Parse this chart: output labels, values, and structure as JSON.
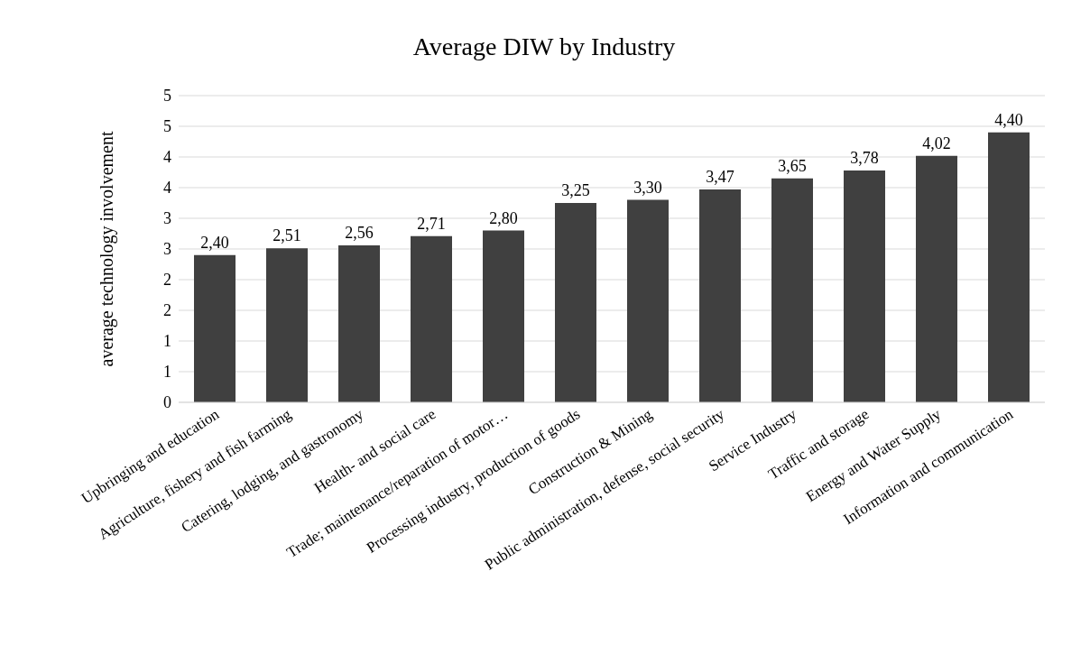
{
  "chart_data": {
    "type": "bar",
    "title": "Average DIW by Industry",
    "ylabel": "average technology involvement",
    "categories": [
      "Upbringing and education",
      "Agriculture, fishery and fish farming",
      "Catering, lodging, and gastronomy",
      "Health- and social care",
      "Trade; maintenance/reparation of motor…",
      "Processing industry, production of goods",
      "Construction & Mining",
      "Public administration, defense, social security",
      "Service Industry",
      "Traffic and storage",
      "Energy and Water Supply",
      "Information and communication"
    ],
    "values": [
      2.4,
      2.51,
      2.56,
      2.71,
      2.8,
      3.25,
      3.3,
      3.47,
      3.65,
      3.78,
      4.02,
      4.4
    ],
    "value_labels": [
      "2,40",
      "2,51",
      "2,56",
      "2,71",
      "2,80",
      "3,25",
      "3,30",
      "3,47",
      "3,65",
      "3,78",
      "4,02",
      "4,40"
    ],
    "color": "#404040",
    "ylim": [
      0,
      5
    ],
    "yticks": [
      0,
      {
        "value": 0.5,
        "label": "1"
      },
      1,
      {
        "value": 1.5,
        "label": "2"
      },
      2,
      {
        "value": 2.5,
        "label": "3"
      },
      3,
      {
        "value": 3.5,
        "label": "4"
      },
      4,
      {
        "value": 4.5,
        "label": "5"
      },
      5
    ],
    "grid": "y",
    "legend": false
  }
}
